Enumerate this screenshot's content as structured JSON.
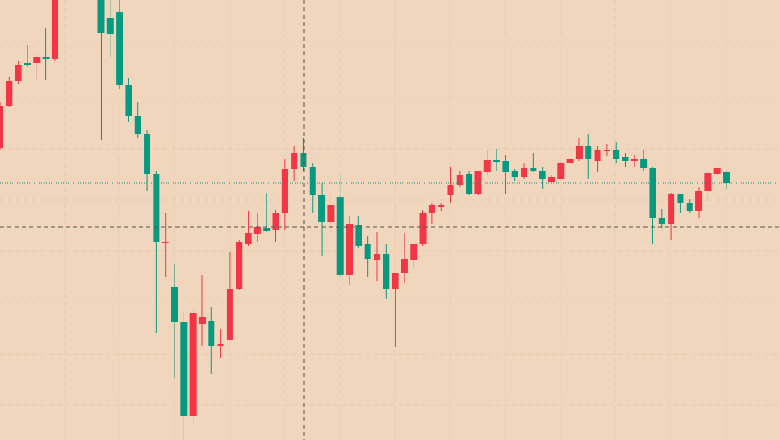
{
  "chart_data": {
    "type": "candlestick",
    "up_color": "#f23645",
    "down_color": "#089981",
    "ylim": [
      0,
      541
    ],
    "open": [
      359,
      411,
      441,
      464,
      463,
      471,
      469,
      null,
      null,
      null,
      null,
      541,
      519,
      526,
      437,
      398,
      376,
      327,
      242,
      188,
      145,
      30,
      143,
      146,
      116,
      123,
      186,
      241,
      253,
      261,
      258,
      279,
      333,
      353,
      336,
      301,
      268,
      299,
      203,
      264,
      241,
      221,
      229,
      186,
      205,
      221,
      241,
      279,
      287,
      301,
      313,
      327,
      303,
      329,
      344,
      343,
      331,
      323,
      335,
      331,
      317,
      321,
      341,
      345,
      361,
      343,
      355,
      356,
      348,
      343,
      345,
      334,
      273,
      266,
      303,
      291,
      281,
      306,
      327,
      329
    ],
    "high": [
      416,
      446,
      466,
      486,
      473,
      506,
      541,
      null,
      null,
      null,
      null,
      541,
      541,
      541,
      445,
      415,
      381,
      331,
      279,
      216,
      156,
      161,
      203,
      163,
      136,
      231,
      246,
      281,
      279,
      304,
      283,
      346,
      361,
      371,
      341,
      316,
      301,
      326,
      276,
      276,
      251,
      256,
      241,
      205,
      254,
      241,
      283,
      291,
      291,
      336,
      331,
      331,
      331,
      356,
      358,
      351,
      333,
      341,
      353,
      336,
      326,
      343,
      347,
      371,
      376,
      361,
      364,
      366,
      353,
      351,
      356,
      336,
      284,
      304,
      303,
      296,
      311,
      331,
      336,
      331
    ],
    "low": [
      356,
      409,
      438,
      459,
      444,
      443,
      466,
      null,
      null,
      null,
      null,
      369,
      471,
      431,
      391,
      371,
      306,
      131,
      201,
      76,
      1,
      21,
      116,
      81,
      101,
      123,
      185,
      238,
      243,
      256,
      243,
      258,
      319,
      331,
      279,
      226,
      256,
      201,
      191,
      236,
      201,
      196,
      173,
      114,
      193,
      211,
      239,
      266,
      281,
      291,
      311,
      301,
      301,
      326,
      331,
      303,
      319,
      321,
      329,
      309,
      316,
      319,
      339,
      343,
      321,
      329,
      349,
      341,
      336,
      336,
      331,
      241,
      261,
      246,
      279,
      279,
      273,
      294,
      326,
      309
    ],
    "close": [
      411,
      441,
      461,
      461,
      471,
      469,
      541,
      null,
      null,
      null,
      null,
      501,
      499,
      437,
      398,
      376,
      327,
      243,
      244,
      145,
      30,
      156,
      151,
      116,
      118,
      186,
      243,
      254,
      262,
      257,
      279,
      333,
      353,
      336,
      301,
      268,
      289,
      203,
      266,
      239,
      223,
      229,
      186,
      205,
      223,
      241,
      279,
      289,
      289,
      313,
      326,
      303,
      331,
      344,
      342,
      329,
      323,
      334,
      331,
      321,
      323,
      341,
      345,
      361,
      345,
      356,
      357,
      346,
      343,
      345,
      334,
      273,
      266,
      303,
      291,
      281,
      306,
      328,
      334,
      316
    ]
  }
}
